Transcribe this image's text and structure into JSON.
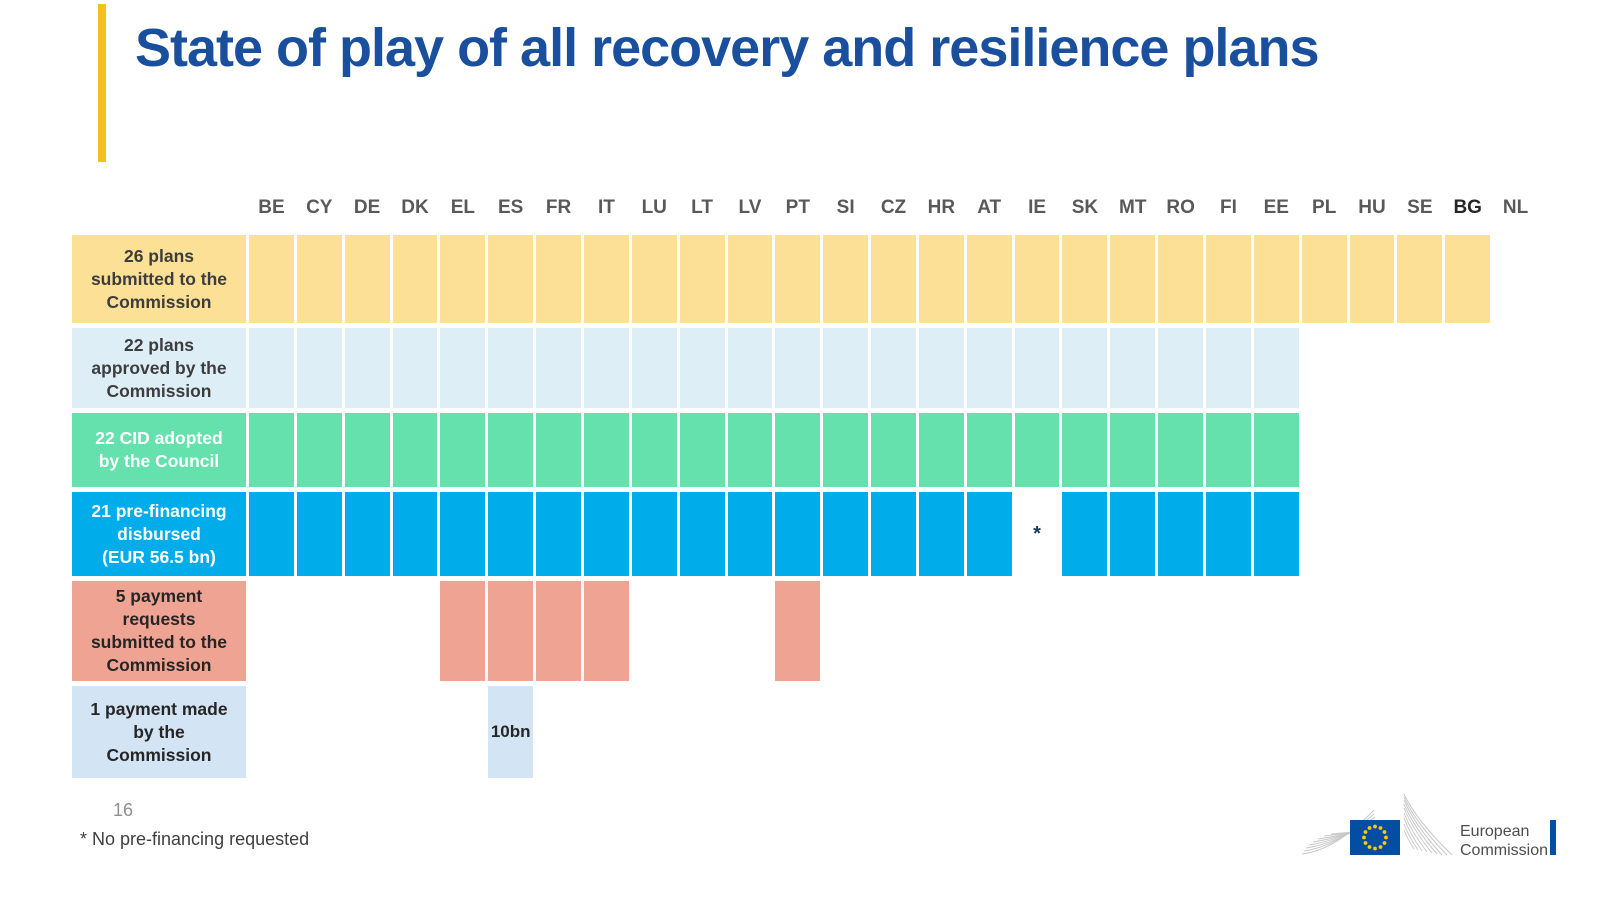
{
  "slide": {
    "title": "State of play of all recovery and resilience plans",
    "page_number": "16",
    "footnote": "* No pre-financing requested"
  },
  "logo": {
    "line1": "European",
    "line2": "Commission"
  },
  "colors": {
    "title_blue": "#1A4F9E",
    "accent_gold": "#F3C11C",
    "header_text": "#595959",
    "submitted_yellow": "#FBE095",
    "approved_pale_blue": "#DEEEF7",
    "cid_green": "#64E1AD",
    "prefinancing_blue": "#00ACE9",
    "requests_salmon": "#EFA493",
    "payment_steel_blue": "#D3E4F4",
    "flag_blue": "#034EA2",
    "star_yellow": "#FFCC00"
  },
  "chart_data": {
    "type": "heatmap",
    "title": "State of play of all recovery and resilience plans",
    "columns": [
      "BE",
      "CY",
      "DE",
      "DK",
      "EL",
      "ES",
      "FR",
      "IT",
      "LU",
      "LT",
      "LV",
      "PT",
      "SI",
      "CZ",
      "HR",
      "AT",
      "IE",
      "SK",
      "MT",
      "RO",
      "FI",
      "EE",
      "PL",
      "HU",
      "SE",
      "BG",
      "NL"
    ],
    "bold_columns": [
      "BG"
    ],
    "legend_position": "left-row-labels",
    "rows": [
      {
        "id": "submitted",
        "label": "26 plans submitted to the Commission",
        "label_lines": [
          "26 plans",
          "submitted to the",
          "Commission"
        ],
        "count": 26,
        "color": "#FBE095",
        "label_text_color": "#3D3D3D",
        "filled": [
          "BE",
          "CY",
          "DE",
          "DK",
          "EL",
          "ES",
          "FR",
          "IT",
          "LU",
          "LT",
          "LV",
          "PT",
          "SI",
          "CZ",
          "HR",
          "AT",
          "IE",
          "SK",
          "MT",
          "RO",
          "FI",
          "EE",
          "PL",
          "HU",
          "SE",
          "BG"
        ],
        "annotations": {}
      },
      {
        "id": "approved",
        "label": "22 plans approved by the Commission",
        "label_lines": [
          "22 plans",
          "approved by the",
          "Commission"
        ],
        "count": 22,
        "color": "#DEEEF7",
        "label_text_color": "#3D3D3D",
        "filled": [
          "BE",
          "CY",
          "DE",
          "DK",
          "EL",
          "ES",
          "FR",
          "IT",
          "LU",
          "LT",
          "LV",
          "PT",
          "SI",
          "CZ",
          "HR",
          "AT",
          "IE",
          "SK",
          "MT",
          "RO",
          "FI",
          "EE"
        ],
        "annotations": {}
      },
      {
        "id": "cid-adopted",
        "label": "22 CID adopted by the Council",
        "label_lines": [
          "22 CID adopted",
          "by the Council"
        ],
        "count": 22,
        "color": "#64E1AD",
        "label_text_color": "#FFFFFF",
        "filled": [
          "BE",
          "CY",
          "DE",
          "DK",
          "EL",
          "ES",
          "FR",
          "IT",
          "LU",
          "LT",
          "LV",
          "PT",
          "SI",
          "CZ",
          "HR",
          "AT",
          "IE",
          "SK",
          "MT",
          "RO",
          "FI",
          "EE"
        ],
        "annotations": {}
      },
      {
        "id": "prefinancing",
        "label": "21 pre-financing disbursed (EUR 56.5 bn)",
        "label_lines": [
          "21 pre-financing",
          "disbursed",
          "(EUR 56.5 bn)"
        ],
        "count": 21,
        "amount": "EUR 56.5 bn",
        "color": "#00ACE9",
        "label_text_color": "#FFFFFF",
        "filled": [
          "BE",
          "CY",
          "DE",
          "DK",
          "EL",
          "ES",
          "FR",
          "IT",
          "LU",
          "LT",
          "LV",
          "PT",
          "SI",
          "CZ",
          "HR",
          "AT",
          "SK",
          "MT",
          "RO",
          "FI",
          "EE"
        ],
        "annotations": {
          "IE": "*"
        }
      },
      {
        "id": "payment-requests",
        "label": "5 payment requests submitted to the Commission",
        "label_lines": [
          "5 payment",
          "requests",
          "submitted to the",
          "Commission"
        ],
        "count": 5,
        "color": "#EFA493",
        "label_text_color": "#262626",
        "filled": [
          "EL",
          "ES",
          "FR",
          "IT",
          "PT"
        ],
        "annotations": {}
      },
      {
        "id": "payment-made",
        "label": "1 payment made by the Commission",
        "label_lines": [
          "1 payment made",
          "by the",
          "Commission"
        ],
        "count": 1,
        "color": "#D3E4F4",
        "label_text_color": "#262626",
        "filled": [
          "ES"
        ],
        "annotations": {
          "ES": "10bn"
        }
      }
    ]
  }
}
